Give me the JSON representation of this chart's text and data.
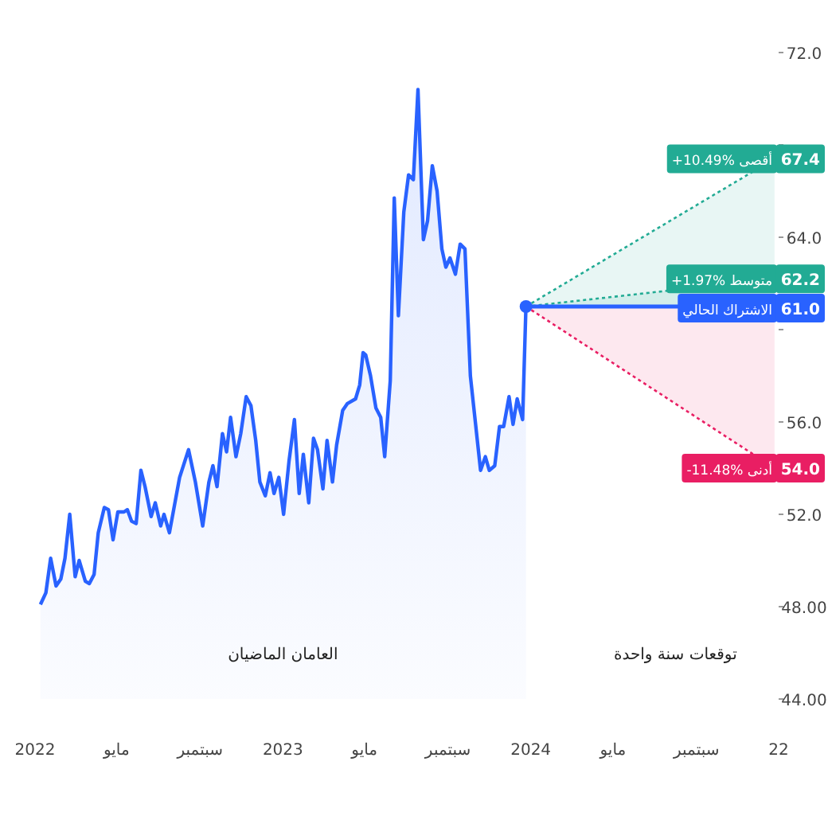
{
  "chart_data": {
    "type": "area",
    "xlim": [
      "2022-01-01",
      "2024-12-31"
    ],
    "xticks": [
      {
        "value": "2022-01-01",
        "label": "2022"
      },
      {
        "value": "2022-05-01",
        "label": "مايو"
      },
      {
        "value": "2022-09-01",
        "label": "سبتمبر"
      },
      {
        "value": "2023-01-01",
        "label": "2023"
      },
      {
        "value": "2023-05-01",
        "label": "مايو"
      },
      {
        "value": "2023-09-01",
        "label": "سبتمبر"
      },
      {
        "value": "2024-01-01",
        "label": "2024"
      },
      {
        "value": "2024-05-01",
        "label": "مايو"
      },
      {
        "value": "2024-09-01",
        "label": "سبتمبر"
      },
      {
        "value": "2024-12-31",
        "label": "22"
      }
    ],
    "ylim": [
      44,
      72
    ],
    "yticks": [
      {
        "value": 72,
        "label": "72.0"
      },
      {
        "value": 68,
        "label": null
      },
      {
        "value": 64,
        "label": "64.0"
      },
      {
        "value": 60,
        "label": null
      },
      {
        "value": 56,
        "label": "56.0"
      },
      {
        "value": 52,
        "label": "52.0"
      },
      {
        "value": 48,
        "label": "48.00"
      },
      {
        "value": 44,
        "label": "44.00"
      }
    ],
    "grid": false,
    "legend": "right",
    "series": [
      {
        "color": "#2962ff",
        "x": [
          "2022-01-09",
          "2022-01-17",
          "2022-01-24",
          "2022-02-01",
          "2022-02-08",
          "2022-02-14",
          "2022-02-21",
          "2022-03-01",
          "2022-03-07",
          "2022-03-16",
          "2022-03-22",
          "2022-03-29",
          "2022-04-04",
          "2022-04-13",
          "2022-04-19",
          "2022-04-26",
          "2022-05-03",
          "2022-05-12",
          "2022-05-17",
          "2022-05-23",
          "2022-05-30",
          "2022-06-06",
          "2022-06-12",
          "2022-06-21",
          "2022-06-27",
          "2022-07-05",
          "2022-07-10",
          "2022-07-18",
          "2022-08-02",
          "2022-08-15",
          "2022-08-25",
          "2022-09-05",
          "2022-09-14",
          "2022-09-20",
          "2022-09-26",
          "2022-10-04",
          "2022-10-10",
          "2022-10-16",
          "2022-10-24",
          "2022-10-31",
          "2022-11-08",
          "2022-11-15",
          "2022-11-22",
          "2022-11-28",
          "2022-12-06",
          "2022-12-13",
          "2022-12-19",
          "2022-12-26",
          "2023-01-02",
          "2023-01-10",
          "2023-01-18",
          "2023-01-25",
          "2023-01-31",
          "2023-02-08",
          "2023-02-15",
          "2023-02-21",
          "2023-03-01",
          "2023-03-07",
          "2023-03-15",
          "2023-03-21",
          "2023-03-30",
          "2023-04-06",
          "2023-04-18",
          "2023-04-24",
          "2023-04-29",
          "2023-05-03",
          "2023-05-10",
          "2023-05-18",
          "2023-05-25",
          "2023-05-31",
          "2023-06-08",
          "2023-06-14",
          "2023-06-20",
          "2023-06-28",
          "2023-07-05",
          "2023-07-12",
          "2023-07-19",
          "2023-07-27",
          "2023-08-02",
          "2023-08-09",
          "2023-08-16",
          "2023-08-23",
          "2023-08-29",
          "2023-09-04",
          "2023-09-12",
          "2023-09-19",
          "2023-09-26",
          "2023-10-04",
          "2023-10-19",
          "2023-10-26",
          "2023-11-01",
          "2023-11-09",
          "2023-11-16",
          "2023-11-22",
          "2023-11-30",
          "2023-12-06",
          "2023-12-12",
          "2023-12-20",
          "2023-12-25"
        ],
        "values": [
          48.1,
          48.6,
          50.1,
          48.9,
          49.2,
          50.1,
          52.0,
          49.3,
          50.0,
          49.1,
          49.0,
          49.4,
          51.2,
          52.3,
          52.2,
          50.9,
          52.1,
          52.1,
          52.2,
          51.7,
          51.6,
          53.9,
          53.2,
          51.9,
          52.5,
          51.5,
          52.0,
          51.2,
          53.6,
          54.8,
          53.4,
          51.5,
          53.4,
          54.1,
          53.2,
          55.5,
          54.7,
          56.2,
          54.5,
          55.5,
          57.1,
          56.7,
          55.2,
          53.4,
          52.8,
          53.8,
          52.9,
          53.6,
          52.0,
          54.3,
          56.1,
          52.9,
          54.6,
          52.5,
          55.3,
          54.8,
          53.1,
          55.2,
          53.4,
          55.0,
          56.5,
          56.8,
          57.0,
          57.6,
          59.0,
          58.9,
          58.0,
          56.6,
          56.2,
          54.5,
          57.8,
          65.7,
          60.6,
          65.1,
          66.7,
          66.5,
          70.4,
          63.9,
          64.7,
          67.1,
          66.0,
          63.5,
          62.7,
          63.1,
          62.4,
          63.7,
          63.5,
          58.0,
          53.9,
          54.5,
          53.9,
          54.1,
          55.8,
          55.8,
          57.1,
          55.9,
          57.0,
          56.1,
          61.0
        ]
      },
      {
        "type": "line",
        "name": "+10.49% أقصى",
        "color": "#22ab94",
        "line_style": "dotted",
        "x": [
          "2023-12-25",
          "2024-12-25"
        ],
        "values": [
          61.0,
          67.4
        ],
        "value_labels": [
          null,
          "67.4"
        ]
      },
      {
        "type": "line",
        "name": "+1.97% متوسط",
        "color": "#22ab94",
        "line_style": "dotted",
        "x": [
          "2023-12-25",
          "2024-12-25"
        ],
        "values": [
          61.0,
          62.2
        ],
        "value_labels": [
          null,
          "62.2"
        ]
      },
      {
        "type": "line",
        "name": "-11.48% أدنى",
        "color": "#e91e63",
        "line_style": "dotted",
        "x": [
          "2023-12-25",
          "2024-12-25"
        ],
        "values": [
          61.0,
          54.0
        ],
        "value_labels": [
          null,
          "54.0"
        ]
      }
    ],
    "ref_lines": [
      {
        "axis": "y",
        "value": 61.0,
        "label": "الاشتراك الحالي",
        "color": "#2962ff"
      }
    ],
    "annotations": [
      "العامان الماضيان",
      "توقعات سنة واحدة",
      {
        "text": "61.0",
        "x": "2024-12-31",
        "y": 61.0
      }
    ]
  }
}
